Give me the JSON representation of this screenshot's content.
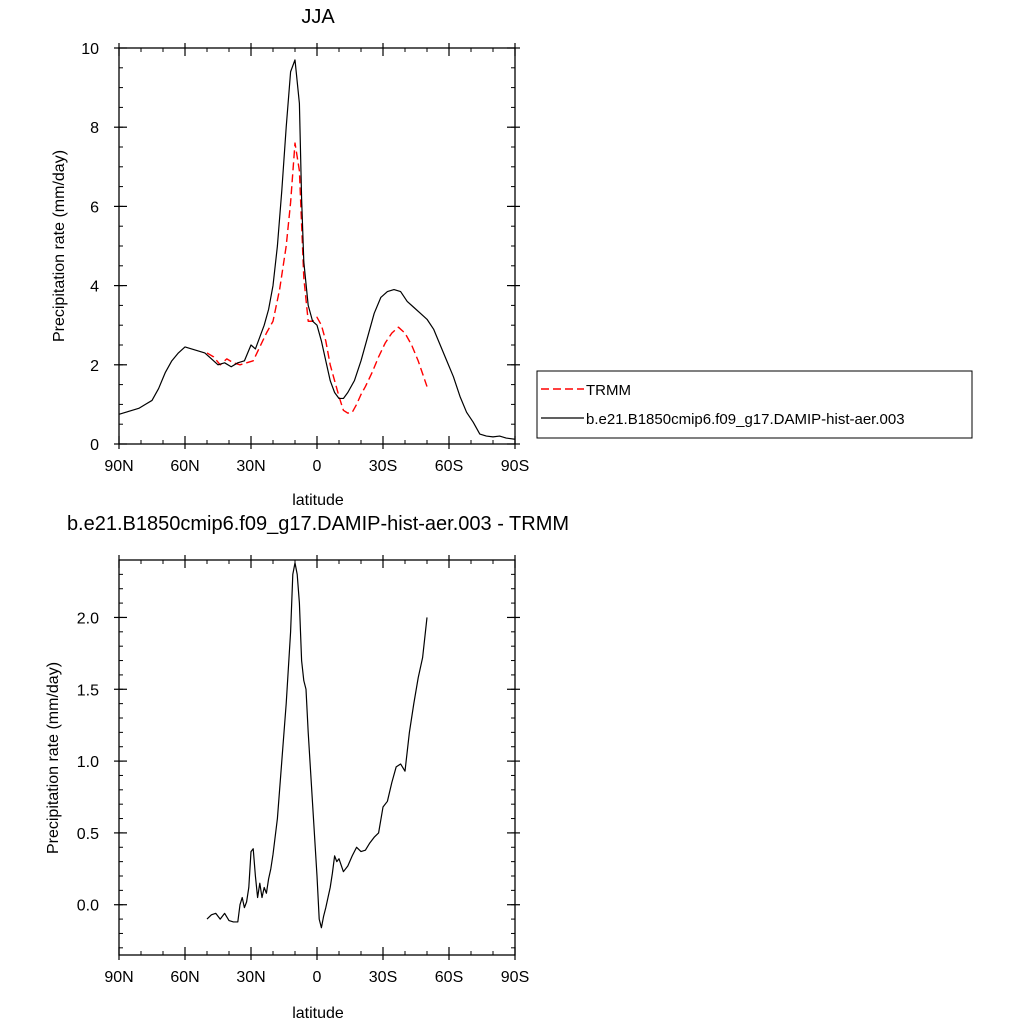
{
  "chart_data": [
    {
      "type": "line",
      "title": "JJA",
      "xlabel": "latitude",
      "ylabel": "Precipitation rate (mm/day)",
      "xlim": [
        90,
        -90
      ],
      "ylim": [
        0,
        10
      ],
      "xticks": [
        90,
        60,
        30,
        0,
        -30,
        -60,
        -90
      ],
      "xtick_labels": [
        "90N",
        "60N",
        "30N",
        "0",
        "30S",
        "60S",
        "90S"
      ],
      "yticks": [
        0,
        2,
        4,
        6,
        8,
        10
      ],
      "ytick_labels": [
        "0",
        "2",
        "4",
        "6",
        "8",
        "10"
      ],
      "grid": false,
      "legend_position": "right",
      "series": [
        {
          "name": "TRMM",
          "color": "#ff0000",
          "dash": "dashed",
          "x": [
            50,
            47,
            44,
            41,
            38,
            35,
            32,
            29,
            26,
            23,
            20,
            17,
            14,
            12,
            10,
            8,
            6,
            4,
            2,
            0,
            -2,
            -4,
            -6,
            -8,
            -10,
            -12,
            -14,
            -16,
            -18,
            -20,
            -22,
            -25,
            -28,
            -31,
            -34,
            -37,
            -40,
            -43,
            -46,
            -50
          ],
          "y": [
            2.3,
            2.2,
            2.0,
            2.15,
            2.05,
            2.0,
            2.05,
            2.1,
            2.45,
            2.8,
            3.1,
            3.9,
            5.0,
            6.1,
            7.6,
            6.9,
            4.2,
            3.1,
            3.1,
            3.2,
            3.0,
            2.6,
            2.0,
            1.6,
            1.2,
            0.85,
            0.78,
            0.8,
            1.0,
            1.25,
            1.45,
            1.8,
            2.2,
            2.55,
            2.8,
            2.95,
            2.8,
            2.5,
            2.1,
            1.45
          ]
        },
        {
          "name": "b.e21.B1850cmip6.f09_g17.DAMIP-hist-aer.003",
          "color": "#000000",
          "dash": "solid",
          "x": [
            90,
            87,
            84,
            81,
            78,
            75,
            72,
            69,
            66,
            63,
            60,
            57,
            54,
            51,
            48,
            45,
            42,
            39,
            36,
            33,
            30,
            28,
            26,
            24,
            22,
            20,
            18,
            16,
            14,
            12,
            10,
            8,
            7,
            6,
            4,
            2,
            0,
            -2,
            -4,
            -6,
            -8,
            -10,
            -12,
            -14,
            -17,
            -20,
            -23,
            -26,
            -29,
            -32,
            -35,
            -38,
            -41,
            -44,
            -47,
            -50,
            -53,
            -56,
            -59,
            -62,
            -65,
            -68,
            -71,
            -74,
            -77,
            -80,
            -83,
            -86,
            -90
          ],
          "y": [
            0.75,
            0.8,
            0.85,
            0.9,
            1.0,
            1.1,
            1.4,
            1.8,
            2.1,
            2.3,
            2.45,
            2.4,
            2.35,
            2.3,
            2.15,
            2.0,
            2.05,
            1.95,
            2.05,
            2.1,
            2.5,
            2.4,
            2.7,
            3.0,
            3.4,
            4.0,
            5.0,
            6.4,
            8.0,
            9.4,
            9.7,
            8.6,
            6.2,
            4.6,
            3.5,
            3.1,
            3.0,
            2.6,
            2.1,
            1.6,
            1.3,
            1.15,
            1.15,
            1.3,
            1.6,
            2.1,
            2.7,
            3.3,
            3.7,
            3.85,
            3.9,
            3.85,
            3.6,
            3.45,
            3.3,
            3.15,
            2.9,
            2.5,
            2.1,
            1.7,
            1.2,
            0.8,
            0.55,
            0.25,
            0.2,
            0.18,
            0.2,
            0.15,
            0.12
          ]
        }
      ]
    },
    {
      "type": "line",
      "title": "b.e21.B1850cmip6.f09_g17.DAMIP-hist-aer.003 - TRMM",
      "xlabel": "latitude",
      "ylabel": "Precipitation rate (mm/day)",
      "xlim": [
        90,
        -90
      ],
      "ylim": [
        -0.35,
        2.4
      ],
      "xticks": [
        90,
        60,
        30,
        0,
        -30,
        -60,
        -90
      ],
      "xtick_labels": [
        "90N",
        "60N",
        "30N",
        "0",
        "30S",
        "60S",
        "90S"
      ],
      "yticks": [
        0.0,
        0.5,
        1.0,
        1.5,
        2.0
      ],
      "ytick_labels": [
        "0.0",
        "0.5",
        "1.0",
        "1.5",
        "2.0"
      ],
      "grid": false,
      "series": [
        {
          "color": "#000000",
          "dash": "solid",
          "x": [
            50,
            48,
            46,
            44,
            42,
            40,
            38,
            36,
            35,
            34,
            33,
            32,
            31,
            30,
            29,
            28,
            27,
            26,
            25,
            24,
            23,
            22,
            21,
            20,
            18,
            16,
            14,
            12,
            11,
            10,
            9,
            8,
            7,
            6,
            5,
            4,
            2,
            0,
            -1,
            -2,
            -3,
            -4,
            -5,
            -6,
            -7,
            -8,
            -9,
            -10,
            -12,
            -14,
            -16,
            -18,
            -20,
            -22,
            -24,
            -26,
            -28,
            -30,
            -32,
            -34,
            -36,
            -38,
            -40,
            -42,
            -44,
            -46,
            -48,
            -50
          ],
          "y": [
            -0.1,
            -0.07,
            -0.06,
            -0.1,
            -0.06,
            -0.11,
            -0.12,
            -0.12,
            0.0,
            0.05,
            -0.02,
            0.02,
            0.12,
            0.37,
            0.39,
            0.2,
            0.05,
            0.15,
            0.05,
            0.12,
            0.08,
            0.18,
            0.25,
            0.35,
            0.6,
            1.0,
            1.4,
            1.9,
            2.3,
            2.38,
            2.3,
            2.1,
            1.7,
            1.56,
            1.5,
            1.2,
            0.7,
            0.2,
            -0.1,
            -0.16,
            -0.08,
            -0.02,
            0.05,
            0.12,
            0.22,
            0.34,
            0.3,
            0.32,
            0.23,
            0.27,
            0.34,
            0.4,
            0.37,
            0.38,
            0.43,
            0.47,
            0.5,
            0.68,
            0.72,
            0.85,
            0.96,
            0.98,
            0.93,
            1.2,
            1.4,
            1.58,
            1.72,
            2.0
          ]
        }
      ]
    }
  ]
}
